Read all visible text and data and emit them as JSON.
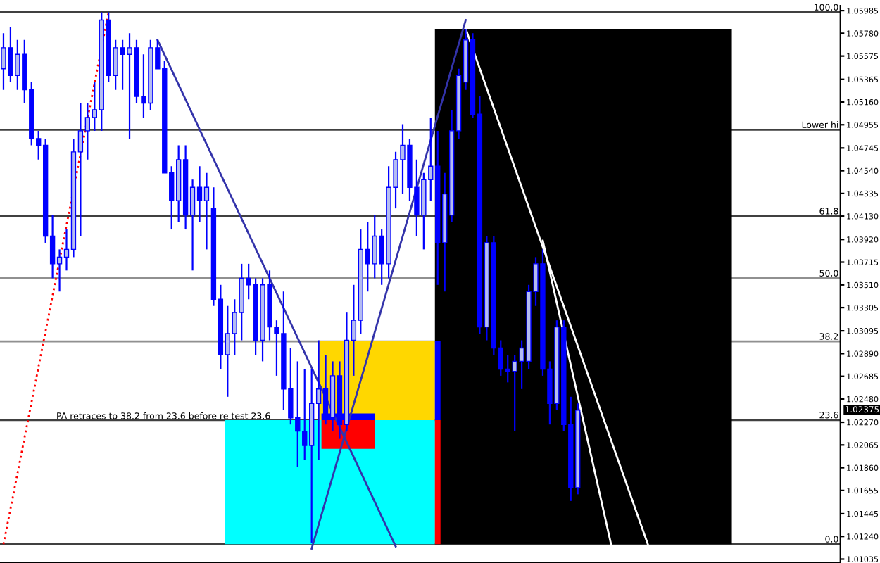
{
  "chart_data": {
    "type": "candlestick",
    "categories": [
      null,
      null,
      null,
      null,
      null,
      null,
      null,
      null,
      null,
      null,
      null,
      null,
      null,
      null,
      null,
      null,
      null,
      null,
      null,
      null,
      null,
      null,
      null,
      null,
      null,
      null,
      null,
      null,
      null,
      null,
      null,
      null,
      null,
      null,
      null,
      null,
      null,
      null,
      null,
      null,
      null,
      null,
      null,
      null,
      null,
      null,
      null,
      null,
      null,
      null,
      null,
      null,
      null,
      null,
      null,
      null,
      null,
      null,
      null,
      null,
      null,
      null,
      null,
      null,
      null,
      null,
      null,
      null,
      null,
      null,
      null,
      null,
      null,
      null,
      null,
      null,
      null,
      null,
      null,
      null,
      null,
      null,
      null,
      null,
      null,
      null,
      null,
      null,
      null,
      null,
      null,
      null,
      null,
      null,
      null,
      null,
      null,
      null,
      null,
      null,
      null,
      null,
      null,
      null,
      null,
      null,
      null,
      null,
      null,
      null,
      null,
      null,
      null,
      null,
      null,
      null,
      null,
      null,
      null,
      null
    ],
    "ohlc": [
      [
        1.0546,
        1.0578,
        1.0527,
        1.0565
      ],
      [
        1.0565,
        1.0584,
        1.0534,
        1.054
      ],
      [
        1.054,
        1.0572,
        1.0527,
        1.0559
      ],
      [
        1.0559,
        1.0572,
        1.0515,
        1.0527
      ],
      [
        1.0527,
        1.0534,
        1.0477,
        1.0483
      ],
      [
        1.0483,
        1.049,
        1.0464,
        1.0477
      ],
      [
        1.0477,
        1.0483,
        1.0389,
        1.0395
      ],
      [
        1.0395,
        1.0414,
        1.0357,
        1.037
      ],
      [
        1.037,
        1.0383,
        1.0345,
        1.0376
      ],
      [
        1.0376,
        1.0401,
        1.0364,
        1.0383
      ],
      [
        1.0383,
        1.0483,
        1.0376,
        1.0471
      ],
      [
        1.0471,
        1.0515,
        1.0395,
        1.049
      ],
      [
        1.049,
        1.0515,
        1.0464,
        1.0502
      ],
      [
        1.0502,
        1.0534,
        1.049,
        1.0509
      ],
      [
        1.0509,
        1.0597,
        1.049,
        1.059
      ],
      [
        1.059,
        1.0597,
        1.0534,
        1.054
      ],
      [
        1.054,
        1.0572,
        1.0527,
        1.0565
      ],
      [
        1.0565,
        1.0572,
        1.0527,
        1.0559
      ],
      [
        1.0559,
        1.0578,
        1.0483,
        1.0565
      ],
      [
        1.0565,
        1.0572,
        1.0515,
        1.0521
      ],
      [
        1.0521,
        1.0559,
        1.0502,
        1.0515
      ],
      [
        1.0515,
        1.0572,
        1.0509,
        1.0565
      ],
      [
        1.0565,
        1.0572,
        1.0546,
        1.0546
      ],
      [
        1.0546,
        1.0553,
        1.0452,
        1.0452
      ],
      [
        1.0452,
        1.0458,
        1.0401,
        1.0427
      ],
      [
        1.0427,
        1.0477,
        1.0408,
        1.0464
      ],
      [
        1.0464,
        1.0477,
        1.0401,
        1.0414
      ],
      [
        1.0414,
        1.0446,
        1.0364,
        1.0439
      ],
      [
        1.0439,
        1.0458,
        1.0408,
        1.0427
      ],
      [
        1.0427,
        1.0452,
        1.0383,
        1.0439
      ],
      [
        1.042,
        1.0439,
        1.0332,
        1.0338
      ],
      [
        1.0338,
        1.0351,
        1.0275,
        1.0288
      ],
      [
        1.0288,
        1.0332,
        1.025,
        1.0307
      ],
      [
        1.0307,
        1.0338,
        1.0288,
        1.0326
      ],
      [
        1.0326,
        1.037,
        1.0301,
        1.0357
      ],
      [
        1.0357,
        1.037,
        1.0338,
        1.0351
      ],
      [
        1.0351,
        1.0357,
        1.0288,
        1.0301
      ],
      [
        1.0301,
        1.0357,
        1.0282,
        1.0351
      ],
      [
        1.0351,
        1.0364,
        1.0301,
        1.0313
      ],
      [
        1.0313,
        1.0319,
        1.0269,
        1.0307
      ],
      [
        1.0307,
        1.0345,
        1.0238,
        1.0257
      ],
      [
        1.0257,
        1.0294,
        1.0225,
        1.0231
      ],
      [
        1.0231,
        1.0282,
        1.0187,
        1.0219
      ],
      [
        1.0219,
        1.0275,
        1.0193,
        1.0206
      ],
      [
        1.0206,
        1.0275,
        1.0118,
        1.0244
      ],
      [
        1.0244,
        1.0301,
        1.0193,
        1.0257
      ],
      [
        1.0257,
        1.0288,
        1.0225,
        1.0231
      ],
      [
        1.0231,
        1.0282,
        1.0219,
        1.0269
      ],
      [
        1.0269,
        1.0282,
        1.0212,
        1.0225
      ],
      [
        1.0225,
        1.0326,
        1.0219,
        1.0301
      ],
      [
        1.0301,
        1.0351,
        1.0269,
        1.0319
      ],
      [
        1.0319,
        1.0401,
        1.0307,
        1.0383
      ],
      [
        1.0383,
        1.0408,
        1.0345,
        1.037
      ],
      [
        1.037,
        1.0414,
        1.0357,
        1.0395
      ],
      [
        1.0395,
        1.0401,
        1.0351,
        1.037
      ],
      [
        1.037,
        1.0458,
        1.0357,
        1.0439
      ],
      [
        1.0439,
        1.0471,
        1.042,
        1.0464
      ],
      [
        1.0464,
        1.0496,
        1.0433,
        1.0477
      ],
      [
        1.0477,
        1.0483,
        1.0427,
        1.0439
      ],
      [
        1.0439,
        1.0464,
        1.0395,
        1.0414
      ],
      [
        1.0414,
        1.0452,
        1.0383,
        1.0446
      ],
      [
        1.0446,
        1.0502,
        1.0427,
        1.0458
      ],
      [
        1.0458,
        1.049,
        1.0351,
        1.0389
      ],
      [
        1.0389,
        1.0452,
        1.0345,
        1.0433
      ],
      [
        1.0414,
        1.0509,
        1.0408,
        1.049
      ],
      [
        1.049,
        1.0546,
        1.0483,
        1.054
      ],
      [
        1.0534,
        1.0582,
        1.0527,
        1.0572
      ],
      [
        1.0572,
        1.0578,
        1.0502,
        1.0505
      ],
      [
        1.0505,
        1.0521,
        1.0307,
        1.0313
      ],
      [
        1.0313,
        1.0395,
        1.0301,
        1.0389
      ],
      [
        1.0389,
        1.0395,
        1.0288,
        1.0294
      ],
      [
        1.0294,
        1.0301,
        1.0269,
        1.0275
      ],
      [
        1.0275,
        1.0288,
        1.0263,
        1.0273
      ],
      [
        1.0273,
        1.0288,
        1.0219,
        1.0282
      ],
      [
        1.0282,
        1.0301,
        1.0257,
        1.0294
      ],
      [
        1.0282,
        1.0351,
        1.0275,
        1.0345
      ],
      [
        1.0345,
        1.0376,
        1.0332,
        1.037
      ],
      [
        1.037,
        1.0383,
        1.0269,
        1.0275
      ],
      [
        1.0275,
        1.0282,
        1.0225,
        1.0244
      ],
      [
        1.0244,
        1.0319,
        1.0238,
        1.0313
      ],
      [
        1.0313,
        1.0319,
        1.0219,
        1.0225
      ],
      [
        1.0225,
        1.025,
        1.0156,
        1.0168
      ],
      [
        1.0168,
        1.0244,
        1.0162,
        1.0238
      ],
      null,
      null,
      null,
      null,
      null,
      null,
      null,
      null,
      null,
      null,
      null,
      null,
      null,
      null,
      null,
      null,
      null,
      null,
      null,
      null,
      null,
      null,
      null,
      null,
      null,
      null,
      null,
      null,
      null,
      null,
      null,
      null,
      null,
      null,
      null,
      null,
      null
    ],
    "color": "#0000ff",
    "series": [
      {
        "type": "line",
        "color": "#ff0000",
        "line_style": "dotted",
        "values": [
          1.0117,
          null,
          null,
          null,
          null,
          null,
          null,
          null,
          null,
          null,
          null,
          null,
          null,
          null,
          null,
          1.0597,
          null,
          null,
          null,
          null,
          null,
          null,
          null,
          null,
          null,
          null,
          null,
          null,
          null,
          null,
          null,
          null,
          null,
          null,
          null,
          null,
          null,
          null,
          null,
          null,
          null,
          null,
          null,
          null,
          null,
          null,
          null,
          null,
          null,
          null,
          null,
          null,
          null,
          null,
          null,
          null,
          null,
          null,
          null,
          null,
          null,
          null,
          null,
          null,
          null,
          null,
          null,
          null,
          null,
          null,
          null,
          null,
          null,
          null,
          null,
          null,
          null,
          null,
          null,
          null,
          null,
          null,
          null,
          null,
          null,
          null,
          null,
          null,
          null,
          null,
          null,
          null,
          null,
          null,
          null,
          null,
          null,
          null,
          null,
          null,
          null,
          null,
          null,
          null,
          null,
          null,
          null,
          null,
          null,
          null,
          null,
          null,
          null,
          null,
          null,
          null,
          null,
          null,
          null,
          null
        ]
      },
      {
        "type": "line",
        "color": "#3333aa",
        "line_style": "solid",
        "values": [
          null,
          null,
          null,
          null,
          null,
          null,
          null,
          null,
          null,
          null,
          null,
          null,
          null,
          null,
          null,
          null,
          null,
          null,
          null,
          null,
          null,
          null,
          1.0572,
          null,
          null,
          null,
          null,
          null,
          null,
          null,
          null,
          null,
          null,
          null,
          null,
          null,
          null,
          null,
          null,
          null,
          null,
          null,
          null,
          null,
          null,
          null,
          null,
          null,
          null,
          null,
          null,
          null,
          null,
          null,
          null,
          null,
          1.0115,
          null,
          null,
          null,
          null,
          null,
          null,
          null,
          null,
          null,
          null,
          null,
          null,
          null,
          null,
          null,
          null,
          null,
          null,
          null,
          null,
          null,
          null,
          null,
          null,
          null,
          null,
          null,
          null,
          null,
          null,
          null,
          null,
          null,
          null,
          null,
          null,
          null,
          null,
          null,
          null,
          null,
          null,
          null,
          null,
          null,
          null,
          null,
          null,
          null,
          null,
          null,
          null,
          null,
          null,
          null,
          null,
          null,
          null,
          null,
          null,
          null,
          null,
          null
        ]
      },
      {
        "type": "line",
        "color": "#3333aa",
        "line_style": "solid",
        "values": [
          null,
          null,
          null,
          null,
          null,
          null,
          null,
          null,
          null,
          null,
          null,
          null,
          null,
          null,
          null,
          null,
          null,
          null,
          null,
          null,
          null,
          null,
          null,
          null,
          null,
          null,
          null,
          null,
          null,
          null,
          null,
          null,
          null,
          null,
          null,
          null,
          null,
          null,
          null,
          null,
          null,
          null,
          null,
          null,
          1.0113,
          null,
          null,
          null,
          null,
          null,
          null,
          null,
          null,
          null,
          null,
          null,
          null,
          null,
          null,
          null,
          null,
          null,
          null,
          null,
          null,
          null,
          1.059,
          null,
          null,
          null,
          null,
          null,
          null,
          null,
          null,
          null,
          null,
          null,
          null,
          null,
          null,
          null,
          null,
          null,
          null,
          null,
          null,
          null,
          null,
          null,
          null,
          null,
          null,
          null,
          null,
          null,
          null,
          null,
          null,
          null,
          null,
          null,
          null,
          null,
          null,
          null,
          null,
          null,
          null,
          null,
          null,
          null,
          null,
          null,
          null,
          null,
          null,
          null,
          null,
          null
        ]
      },
      {
        "type": "line",
        "color": "#ffffff",
        "line_style": "solid",
        "values": [
          null,
          null,
          null,
          null,
          null,
          null,
          null,
          null,
          null,
          null,
          null,
          null,
          null,
          null,
          null,
          null,
          null,
          null,
          null,
          null,
          null,
          null,
          null,
          null,
          null,
          null,
          null,
          null,
          null,
          null,
          null,
          null,
          null,
          null,
          null,
          null,
          null,
          null,
          null,
          null,
          null,
          null,
          null,
          null,
          null,
          null,
          null,
          null,
          null,
          null,
          null,
          null,
          null,
          null,
          null,
          null,
          null,
          null,
          null,
          null,
          null,
          null,
          null,
          null,
          null,
          null,
          1.0582,
          null,
          null,
          null,
          null,
          null,
          null,
          null,
          null,
          null,
          null,
          null,
          null,
          null,
          null,
          null,
          null,
          null,
          null,
          null,
          null,
          null,
          null,
          null,
          null,
          null,
          1.0117,
          null,
          null,
          null,
          null,
          null,
          null,
          null,
          null,
          null,
          null,
          null,
          null,
          null,
          null,
          null,
          null,
          null,
          null,
          null,
          null,
          null,
          null,
          null,
          null,
          null,
          null,
          null
        ]
      },
      {
        "type": "line",
        "color": "#ffffff",
        "line_style": "solid",
        "values": [
          null,
          null,
          null,
          null,
          null,
          null,
          null,
          null,
          null,
          null,
          null,
          null,
          null,
          null,
          null,
          null,
          null,
          null,
          null,
          null,
          null,
          null,
          null,
          null,
          null,
          null,
          null,
          null,
          null,
          null,
          null,
          null,
          null,
          null,
          null,
          null,
          null,
          null,
          null,
          null,
          null,
          null,
          null,
          null,
          null,
          null,
          null,
          null,
          null,
          null,
          null,
          null,
          null,
          null,
          null,
          null,
          null,
          null,
          null,
          null,
          null,
          null,
          null,
          null,
          null,
          null,
          null,
          null,
          null,
          null,
          null,
          null,
          null,
          null,
          null,
          null,
          null,
          1.0391,
          null,
          null,
          null,
          null,
          null,
          null,
          null,
          null,
          null,
          1.011,
          null,
          null,
          null,
          null,
          null,
          null,
          null,
          null,
          null,
          null,
          null,
          null,
          null,
          null,
          null,
          null,
          null,
          null,
          null,
          null,
          null,
          null,
          null,
          null,
          null,
          null,
          null,
          null,
          null,
          null,
          null,
          null
        ]
      }
    ],
    "ref_lines": [
      {
        "axis": "y",
        "value": 1.0597,
        "color": "#404040"
      },
      {
        "axis": "y",
        "value": 1.0491,
        "color": "#404040"
      },
      {
        "axis": "y",
        "value": 1.0413,
        "color": "#404040"
      },
      {
        "axis": "y",
        "value": 1.0357,
        "color": "#909090"
      },
      {
        "axis": "y",
        "value": 1.03,
        "color": "#909090"
      },
      {
        "axis": "y",
        "value": 1.0229,
        "color": "#404040"
      },
      {
        "axis": "y",
        "value": 1.0117,
        "color": "#404040"
      }
    ],
    "annotations": [
      {
        "text": "100.0",
        "y": 1.0597
      },
      {
        "text": "Lower hi",
        "y": 1.0491
      },
      {
        "text": "61.8",
        "y": 1.0413
      },
      {
        "text": "50.0",
        "y": 1.0357
      },
      {
        "text": "38.2",
        "y": 1.03
      },
      {
        "text": "23.6",
        "y": 1.0229
      },
      {
        "text": "0.0",
        "y": 1.0117
      },
      "PA retraces to 38.2 from 23.6 before re test 23.6",
      "1.02375"
    ],
    "ylim": [
      1.01,
      1.0603
    ],
    "yticks": [
      1.05985,
      {
        "value": 1.0578,
        "label": "1.05780"
      },
      1.05575,
      1.05365,
      {
        "value": 1.0516,
        "label": "1.05160"
      },
      1.04955,
      1.04745,
      {
        "value": 1.0454,
        "label": "1.04540"
      },
      1.04335,
      {
        "value": 1.0413,
        "label": "1.04130"
      },
      {
        "value": 1.0392,
        "label": "1.03920"
      },
      1.03715,
      {
        "value": 1.0351,
        "label": "1.03510"
      },
      1.03305,
      1.03095,
      {
        "value": 1.0289,
        "label": "1.02890"
      },
      1.02685,
      {
        "value": 1.0248,
        "label": "1.02480"
      },
      {
        "value": 1.0227,
        "label": "1.02270"
      },
      1.02065,
      {
        "value": 1.0186,
        "label": "1.01860"
      },
      1.01655,
      1.01445,
      {
        "value": 1.0124,
        "label": "1.01240"
      },
      1.01035
    ],
    "tick_labels": "y",
    "grid": false
  }
}
